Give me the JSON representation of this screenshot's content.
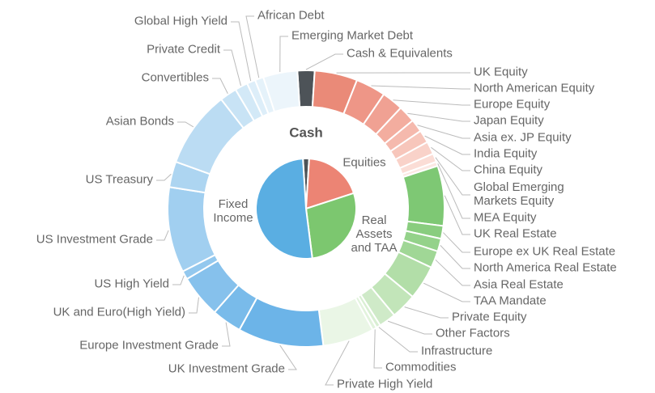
{
  "chart_data": {
    "type": "pie",
    "title": "Cash",
    "inner": {
      "categories": [
        "Cash",
        "Equities",
        "Real Assets and TAA",
        "Fixed Income"
      ],
      "values": [
        2,
        19,
        28,
        51
      ],
      "colors": [
        "#4d5358",
        "#ec8474",
        "#7cc76f",
        "#5aaee2"
      ]
    },
    "outer": {
      "categories": [
        "Cash & Equivalents",
        "UK Equity",
        "North American Equity",
        "Europe Equity",
        "Japan Equity",
        "Asia ex. JP Equity",
        "India Equity",
        "China Equity",
        "Global Emerging Markets Equity",
        "MEA Equity",
        "UK Real Estate",
        "Europe ex UK Real Estate",
        "North America Real Estate",
        "Asia Real Estate",
        "TAA Mandate",
        "Private Equity",
        "Other Factors",
        "Infrastructure",
        "Commodities",
        "Private High Yield",
        "UK Investment Grade",
        "Europe Investment Grade",
        "UK and Euro(High Yield)",
        "US High Yield",
        "US Investment Grade",
        "US Treasury",
        "Asian Bonds",
        "Convertibles",
        "Private Credit",
        "Global High Yield",
        "African Debt",
        "Emerging Market Debt"
      ],
      "values": [
        2,
        5,
        3.5,
        2.5,
        2,
        1.5,
        1.5,
        1.5,
        1,
        0.5,
        7,
        1.5,
        1.5,
        2,
        4,
        3,
        2,
        0.5,
        0.5,
        6,
        10,
        3.5,
        5,
        1,
        10,
        3,
        9,
        2,
        1.5,
        1,
        1,
        4
      ],
      "colors": [
        "#4d5358",
        "#ea8a78",
        "#ee9687",
        "#f0a193",
        "#f3ad9f",
        "#f5b9ad",
        "#f7c6bb",
        "#f9d2c9",
        "#fbddd6",
        "#fce8e3",
        "#7ec874",
        "#89cd7f",
        "#94d28a",
        "#a0d796",
        "#b2dea8",
        "#c2e5b9",
        "#cfeac8",
        "#d9efd3",
        "#e2f3dd",
        "#eaf6e6",
        "#6cb4e8",
        "#79bbea",
        "#86c1ec",
        "#93c8ee",
        "#a1cff0",
        "#add5f1",
        "#bbdcf3",
        "#c8e3f5",
        "#d3e9f7",
        "#ddeef9",
        "#e5f2fa",
        "#ecf5fb"
      ]
    }
  }
}
